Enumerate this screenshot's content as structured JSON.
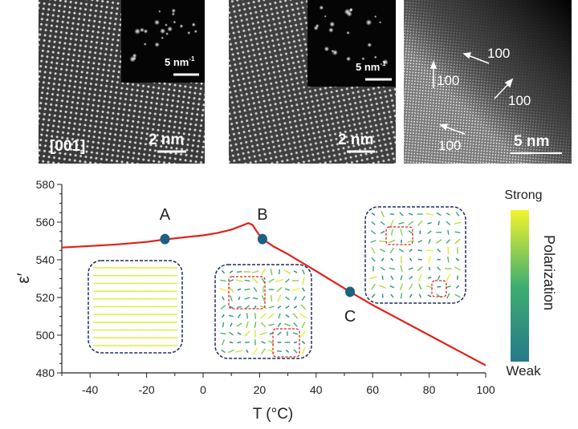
{
  "micrographs": [
    {
      "zone_axis": "[001]",
      "scale_bar": "2 nm",
      "fft_scale_bar": "5 nm",
      "fft_scale_unit_exp": "-1"
    },
    {
      "scale_bar": "2 nm",
      "fft_scale_bar": "5 nm",
      "fft_scale_unit_exp": "-1"
    },
    {
      "scale_bar": "5 nm",
      "direction_labels": [
        "100",
        "100",
        "100",
        "100"
      ]
    }
  ],
  "chart_data": {
    "type": "line",
    "xlabel": "T (°C)",
    "ylabel": "ε′",
    "xlim": [
      -50,
      100
    ],
    "ylim": [
      480,
      580
    ],
    "x_ticks": [
      "-40",
      "-20",
      "0",
      "20",
      "40",
      "60",
      "80",
      "100"
    ],
    "y_ticks": [
      "480",
      "500",
      "520",
      "540",
      "560",
      "580"
    ],
    "grid": false,
    "line_color": "#e0201a",
    "series": [
      {
        "x": [
          -50,
          -40,
          -30,
          -20,
          -13.5,
          -5,
          0,
          5,
          10,
          14,
          16,
          17.5,
          19,
          21,
          25,
          30,
          40,
          52,
          60,
          70,
          80,
          90,
          100
        ],
        "y": [
          546.5,
          547.3,
          548.2,
          549.5,
          550.8,
          552.2,
          553,
          554.2,
          556,
          558.3,
          559.5,
          558.5,
          555,
          551,
          547,
          543,
          534,
          523,
          516,
          508,
          500,
          492,
          484
        ]
      }
    ],
    "markers": [
      {
        "label": "A",
        "x": -13.5,
        "y": 551
      },
      {
        "label": "B",
        "x": 21,
        "y": 551
      },
      {
        "label": "C",
        "x": 52,
        "y": 523
      }
    ],
    "marker_color": "#1f5f80",
    "colorbar": {
      "title": "Polarization",
      "max_label": "Strong",
      "min_label": "Weak",
      "colors": [
        "#25798a",
        "#3fae70",
        "#f2f52c"
      ]
    }
  }
}
